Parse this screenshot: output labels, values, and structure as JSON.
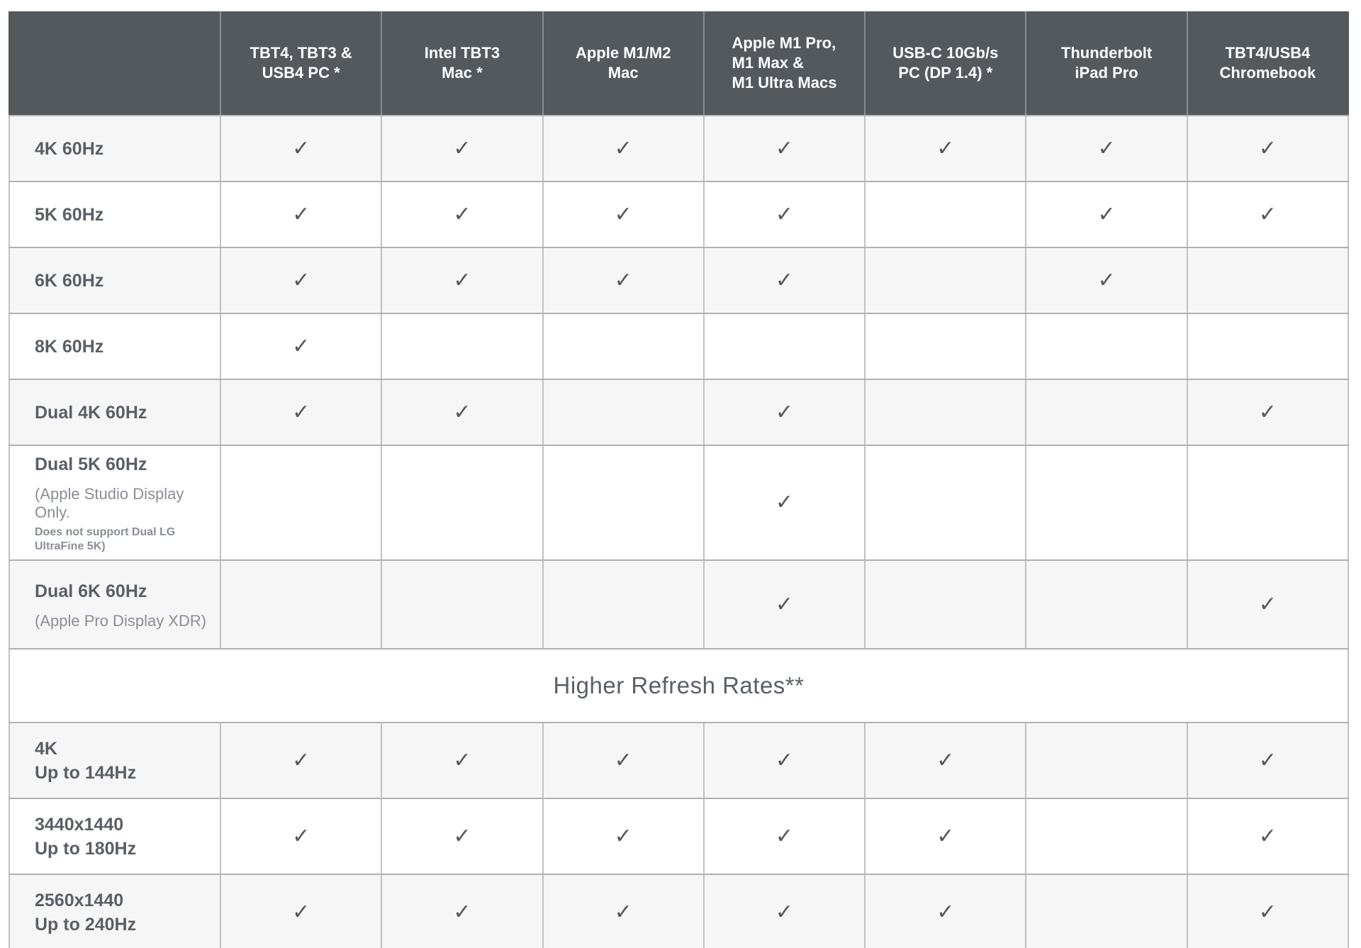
{
  "colors": {
    "header_bg": "#54595E",
    "header_text": "#FFFFFF",
    "header_sep": "#898C90",
    "row_shaded_bg": "#F6F6F7",
    "row_white_bg": "#FFFFFF",
    "label_text": "#5A5F66",
    "sub_text": "#8A8E94",
    "check_color": "#53585E",
    "h_border": "#AFB1B3",
    "v_border": "#BFC1C3"
  },
  "icons": {
    "check": "✓"
  },
  "table": {
    "corner_label": "",
    "columns": [
      "TBT4, TBT3 &\nUSB4 PC *",
      "Intel TBT3\nMac *",
      "Apple M1/M2\nMac",
      "Apple M1 Pro,\nM1 Max &\nM1 Ultra Macs",
      "USB-C 10Gb/s\nPC (DP 1.4) *",
      "Thunderbolt\niPad Pro",
      "TBT4/USB4\nChromebook"
    ],
    "rows": [
      {
        "type": "data",
        "label": "4K 60Hz",
        "sublines": [],
        "checks": [
          1,
          1,
          1,
          1,
          1,
          1,
          1
        ]
      },
      {
        "type": "data",
        "label": "5K 60Hz",
        "sublines": [],
        "checks": [
          1,
          1,
          1,
          1,
          0,
          1,
          1
        ]
      },
      {
        "type": "data",
        "label": "6K 60Hz",
        "sublines": [],
        "checks": [
          1,
          1,
          1,
          1,
          0,
          1,
          0
        ]
      },
      {
        "type": "data",
        "label": "8K 60Hz",
        "sublines": [],
        "checks": [
          1,
          0,
          0,
          0,
          0,
          0,
          0
        ]
      },
      {
        "type": "data",
        "label": "Dual 4K 60Hz",
        "sublines": [],
        "checks": [
          1,
          1,
          0,
          1,
          0,
          0,
          1
        ]
      },
      {
        "type": "data",
        "label": "Dual 5K 60Hz",
        "sublines": [
          "(Apple Studio Display Only.",
          "Does not support Dual LG UltraFine 5K)"
        ],
        "checks": [
          0,
          0,
          0,
          1,
          0,
          0,
          0
        ]
      },
      {
        "type": "data",
        "label": "Dual 6K 60Hz",
        "sublines": [
          "(Apple Pro Display XDR)"
        ],
        "checks": [
          0,
          0,
          0,
          1,
          0,
          0,
          1
        ]
      },
      {
        "type": "section",
        "label": "Higher Refresh Rates**"
      },
      {
        "type": "data",
        "label": "4K\nUp to 144Hz",
        "sublines": [],
        "checks": [
          1,
          1,
          1,
          1,
          1,
          0,
          1
        ]
      },
      {
        "type": "data",
        "label": "3440x1440\nUp to 180Hz",
        "sublines": [],
        "checks": [
          1,
          1,
          1,
          1,
          1,
          0,
          1
        ]
      },
      {
        "type": "data",
        "label": "2560x1440\nUp to 240Hz",
        "sublines": [],
        "checks": [
          1,
          1,
          1,
          1,
          1,
          0,
          1
        ]
      }
    ]
  }
}
